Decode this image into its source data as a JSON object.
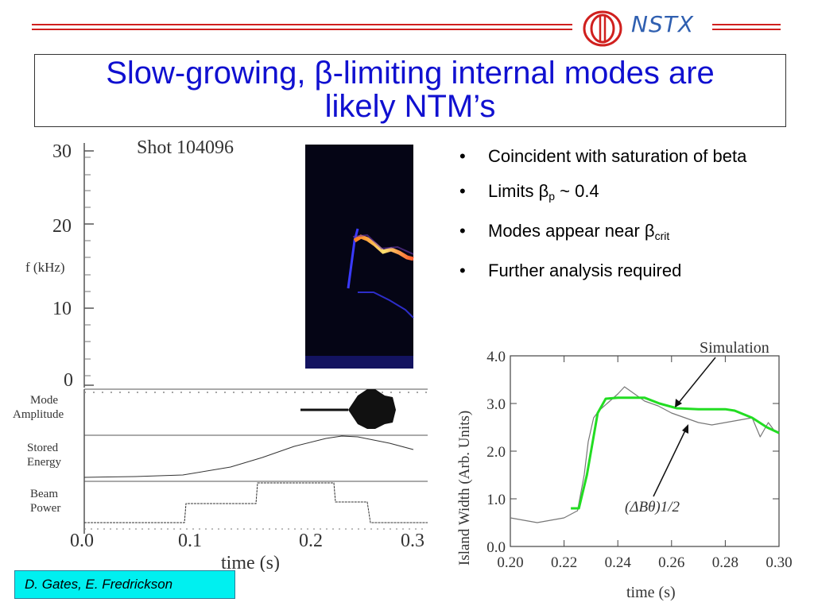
{
  "header": {
    "logo_text": "NSTX",
    "colors": {
      "rule": "#d0201e",
      "logo": "#d0201e",
      "logo_text": "#2f5fb0",
      "title": "#1010d0"
    }
  },
  "title": {
    "line1_pre": "Slow-growing, ",
    "beta_symbol": "β",
    "line1_post": "-limiting internal modes are",
    "line2": "likely NTM’s"
  },
  "left_figure": {
    "shot_label": "Shot 104096",
    "freq_label": "f (kHz)",
    "freq_ticks": [
      "30",
      "20",
      "10",
      "0"
    ],
    "panels": [
      "Mode",
      "Amplitude",
      "Stored",
      "Energy",
      "Beam",
      "Power"
    ],
    "time_ticks": [
      "0.0",
      "0.1",
      "0.2",
      "0.3"
    ],
    "xlabel": "time (s)"
  },
  "bullets": {
    "b1": "Coincident with saturation of beta",
    "b2_pre": "Limits ",
    "b2_beta": "β",
    "b2_sub": "p",
    "b2_post": " ~ 0.4",
    "b3_pre": "Modes appear near ",
    "b3_beta": "β",
    "b3_sub": "crit",
    "b4": "Further analysis required",
    "bullet_char": "•"
  },
  "chart_data": {
    "type": "line",
    "xlabel": "time (s)",
    "ylabel": "Island Width (Arb. Units)",
    "xlim": [
      0.2,
      0.3
    ],
    "ylim": [
      0.0,
      4.0
    ],
    "x_ticks": [
      "0.20",
      "0.22",
      "0.24",
      "0.26",
      "0.28",
      "0.30"
    ],
    "y_ticks": [
      "0.0",
      "1.0",
      "2.0",
      "3.0",
      "4.0"
    ],
    "annotations": [
      "Simulation",
      "(ΔBθ)1/2"
    ],
    "series": [
      {
        "name": "Simulation",
        "color": "#22dd22",
        "x": [
          0.2225,
          0.2255,
          0.2285,
          0.2325,
          0.2355,
          0.24,
          0.25,
          0.2555,
          0.262,
          0.27,
          0.28,
          0.2835,
          0.29,
          0.2955,
          0.3
        ],
        "y": [
          0.8,
          0.8,
          1.5,
          2.8,
          3.1,
          3.12,
          3.12,
          3.0,
          2.9,
          2.88,
          2.88,
          2.85,
          2.7,
          2.5,
          2.38
        ]
      },
      {
        "name": "(ΔBθ)1/2",
        "color": "#777777",
        "x": [
          0.2,
          0.205,
          0.21,
          0.215,
          0.22,
          0.225,
          0.2275,
          0.229,
          0.231,
          0.233,
          0.236,
          0.24,
          0.2425,
          0.245,
          0.25,
          0.255,
          0.26,
          0.265,
          0.27,
          0.275,
          0.28,
          0.285,
          0.29,
          0.293,
          0.296,
          0.298,
          0.3
        ],
        "y": [
          0.6,
          0.55,
          0.5,
          0.55,
          0.6,
          0.75,
          1.5,
          2.2,
          2.7,
          2.85,
          3.0,
          3.2,
          3.35,
          3.25,
          3.05,
          2.95,
          2.8,
          2.7,
          2.6,
          2.55,
          2.6,
          2.65,
          2.7,
          2.3,
          2.6,
          2.45,
          2.4
        ]
      }
    ]
  },
  "credit": "D. Gates, E. Fredrickson"
}
